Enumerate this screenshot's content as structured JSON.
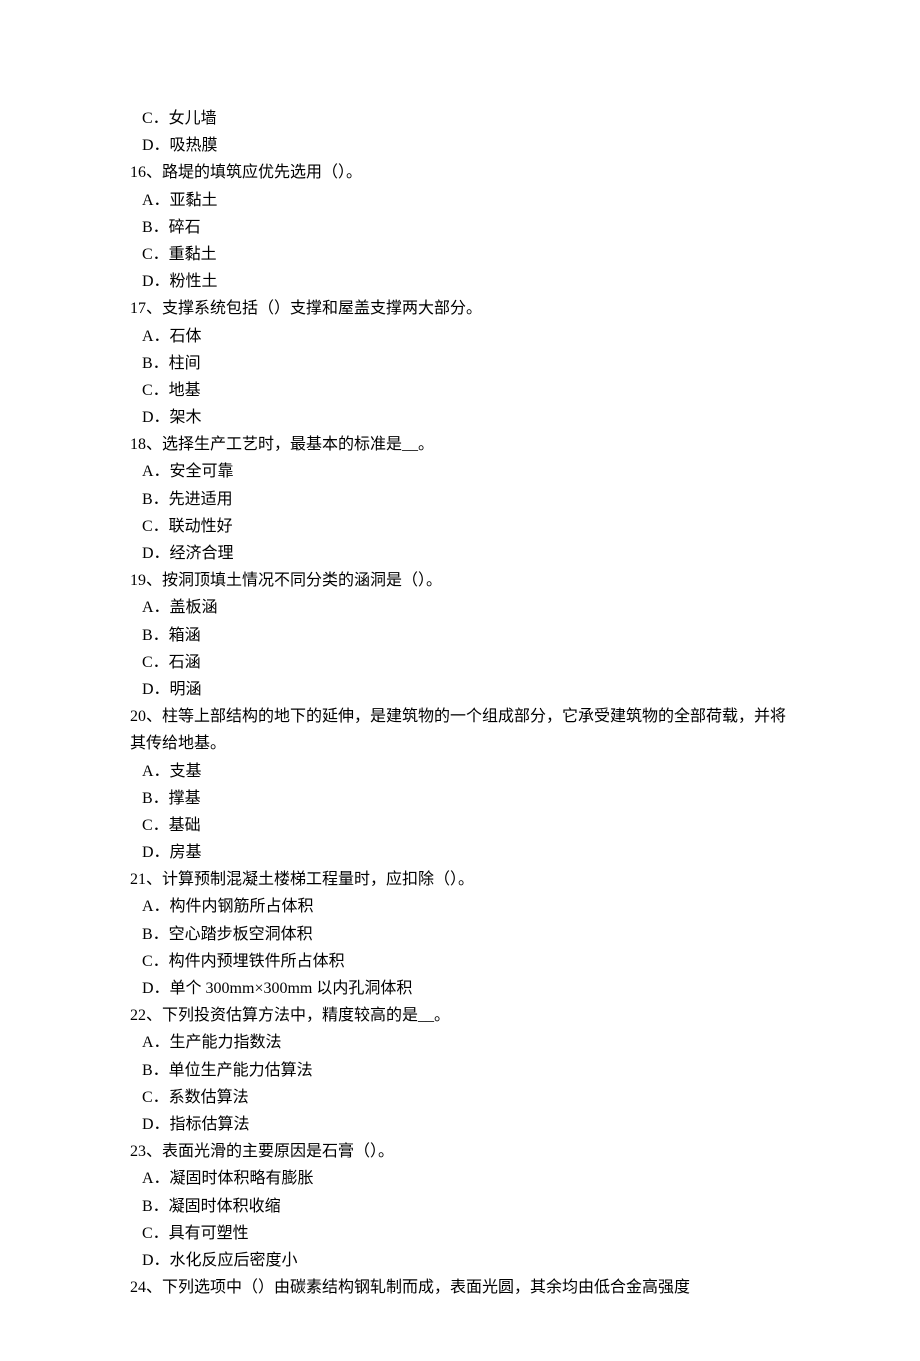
{
  "questions": [
    {
      "number": "",
      "text": "",
      "options": [
        "C．女儿墙",
        "D．吸热膜"
      ]
    },
    {
      "number": "16",
      "text": "、路堤的填筑应优先选用（）。",
      "options": [
        "A．亚黏土",
        "B．碎石",
        "C．重黏土",
        "D．粉性土"
      ]
    },
    {
      "number": "17",
      "text": "、支撑系统包括（）支撑和屋盖支撑两大部分。",
      "options": [
        "A．石体",
        "B．柱间",
        "C．地基",
        "D．架木"
      ]
    },
    {
      "number": "18",
      "text": "、选择生产工艺时，最基本的标准是__。",
      "options": [
        "A．安全可靠",
        "B．先进适用",
        "C．联动性好",
        "D．经济合理"
      ]
    },
    {
      "number": "19",
      "text": "、按洞顶填土情况不同分类的涵洞是（）。",
      "options": [
        "A．盖板涵",
        "B．箱涵",
        "C．石涵",
        "D．明涵"
      ]
    },
    {
      "number": "20",
      "text": "、柱等上部结构的地下的延伸，是建筑物的一个组成部分，它承受建筑物的全部荷载，并将其传给地基。",
      "options": [
        "A．支基",
        "B．撑基",
        "C．基础",
        "D．房基"
      ]
    },
    {
      "number": "21",
      "text": "、计算预制混凝土楼梯工程量时，应扣除（）。",
      "options": [
        "A．构件内钢筋所占体积",
        "B．空心踏步板空洞体积",
        "C．构件内预埋铁件所占体积",
        "D．单个 300mm×300mm 以内孔洞体积"
      ]
    },
    {
      "number": "22",
      "text": "、下列投资估算方法中，精度较高的是__。",
      "options": [
        "A．生产能力指数法",
        "B．单位生产能力估算法",
        "C．系数估算法",
        "D．指标估算法"
      ]
    },
    {
      "number": "23",
      "text": "、表面光滑的主要原因是石膏（）。",
      "options": [
        "A．凝固时体积略有膨胀",
        "B．凝固时体积收缩",
        "C．具有可塑性",
        "D．水化反应后密度小"
      ]
    },
    {
      "number": "24",
      "text": "、下列选项中（）由碳素结构钢轧制而成，表面光圆，其余均由低合金高强度",
      "options": []
    }
  ]
}
